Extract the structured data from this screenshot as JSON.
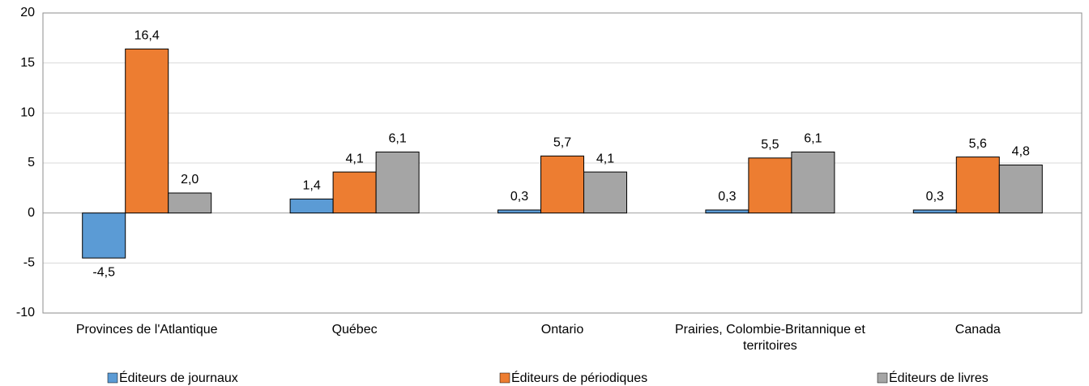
{
  "chart_data": {
    "type": "bar",
    "categories": [
      "Provinces de l'Atlantique",
      "Québec",
      "Ontario",
      "Prairies, Colombie-Britannique et territoires",
      "Canada"
    ],
    "series": [
      {
        "name": "Éditeurs de journaux",
        "color": "#5b9bd5",
        "values": [
          -4.5,
          1.4,
          0.3,
          0.3,
          0.3
        ],
        "value_labels": [
          "-4,5",
          "1,4",
          "0,3",
          "0,3",
          "0,3"
        ]
      },
      {
        "name": "Éditeurs de périodiques",
        "color": "#ed7d31",
        "values": [
          16.4,
          4.1,
          5.7,
          5.5,
          5.6
        ],
        "value_labels": [
          "16,4",
          "4,1",
          "5,7",
          "5,5",
          "5,6"
        ]
      },
      {
        "name": "Éditeurs de livres",
        "color": "#a5a5a5",
        "values": [
          2.0,
          6.1,
          4.1,
          6.1,
          4.8
        ],
        "value_labels": [
          "2,0",
          "6,1",
          "4,1",
          "6,1",
          "4,8"
        ]
      }
    ],
    "ylim": [
      -10,
      20
    ],
    "yticks": [
      -10,
      -5,
      0,
      5,
      10,
      15,
      20
    ],
    "grid": true
  }
}
